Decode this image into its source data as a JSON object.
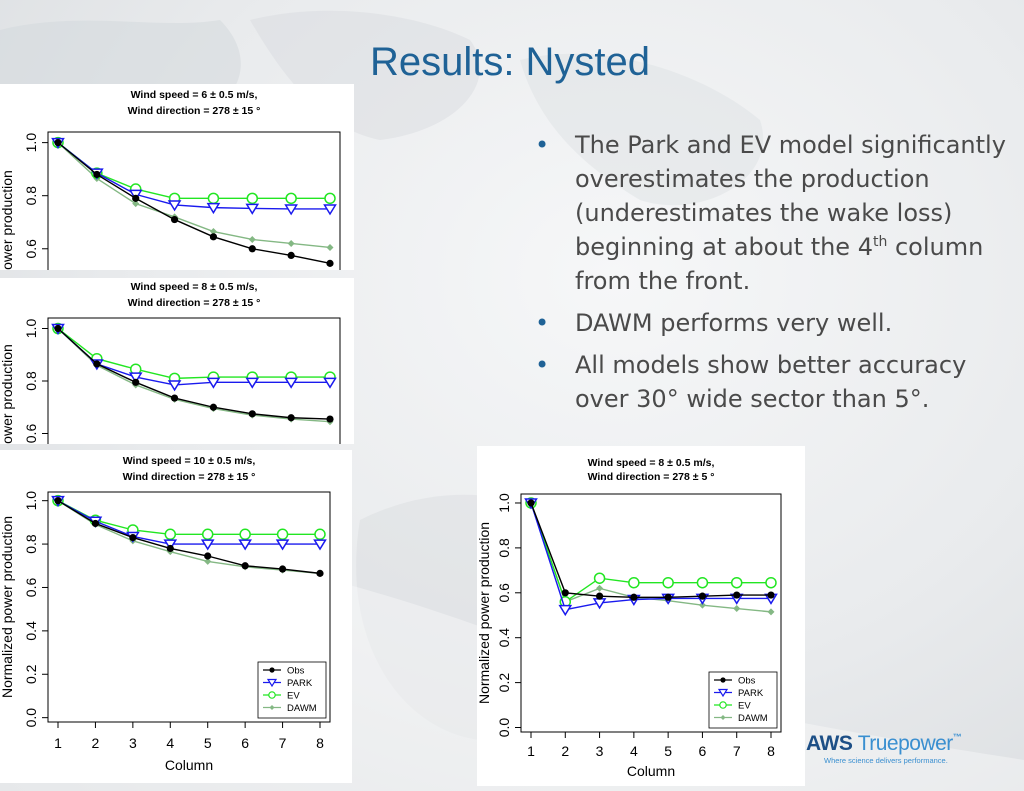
{
  "slide": {
    "title": "Results: Nysted",
    "bullets": [
      {
        "parts": [
          "The Park and EV model significantly overestimates the production (underestimates the wake loss) beginning at about the 4",
          "th",
          " column from the front."
        ]
      },
      {
        "parts": [
          "DAWM performs very well."
        ]
      },
      {
        "parts": [
          "All models show better accuracy over 30° wide sector than 5°."
        ]
      }
    ],
    "bullet_glyph": "•"
  },
  "logo": {
    "brand_bold": "AWS",
    "brand_light": "Truepower",
    "trademark": "™",
    "tagline": "Where science delivers performance."
  },
  "colors": {
    "Obs": "#000000",
    "PARK": "#1a1aee",
    "EV": "#22e622",
    "DAWM": "#84b884",
    "title": "#1f6296"
  },
  "chart_data": [
    {
      "type": "line",
      "title": [
        "Wind speed =  6 ± 0.5  m/s,",
        "Wind direction =  278 ± 15 °"
      ],
      "xlabel": "",
      "ylabel": "ower production",
      "x": [
        1,
        2,
        3,
        4,
        5,
        6,
        7,
        8
      ],
      "ylim": [
        0.52,
        1.04
      ],
      "yticks": [
        "0.6",
        "0.8",
        "1.0"
      ],
      "xticks": [],
      "legend": false,
      "series": [
        {
          "name": "Obs",
          "values": [
            1.0,
            0.88,
            0.79,
            0.71,
            0.645,
            0.6,
            0.575,
            0.545
          ]
        },
        {
          "name": "PARK",
          "values": [
            1.0,
            0.885,
            0.805,
            0.765,
            0.755,
            0.752,
            0.75,
            0.75
          ]
        },
        {
          "name": "EV",
          "values": [
            1.0,
            0.885,
            0.825,
            0.79,
            0.79,
            0.79,
            0.79,
            0.79
          ]
        },
        {
          "name": "DAWM",
          "values": [
            1.0,
            0.865,
            0.77,
            0.72,
            0.665,
            0.635,
            0.62,
            0.605
          ]
        }
      ]
    },
    {
      "type": "line",
      "title": [
        "Wind speed =  8 ± 0.5  m/s,",
        "Wind direction =  278 ± 15 °"
      ],
      "xlabel": "",
      "ylabel": "ower production",
      "x": [
        1,
        2,
        3,
        4,
        5,
        6,
        7,
        8
      ],
      "ylim": [
        0.56,
        1.04
      ],
      "yticks": [
        "0.6",
        "0.8",
        "1.0"
      ],
      "xticks": [],
      "legend": false,
      "series": [
        {
          "name": "Obs",
          "values": [
            1.0,
            0.865,
            0.795,
            0.735,
            0.7,
            0.675,
            0.66,
            0.655
          ]
        },
        {
          "name": "PARK",
          "values": [
            1.0,
            0.865,
            0.815,
            0.785,
            0.795,
            0.795,
            0.795,
            0.795
          ]
        },
        {
          "name": "EV",
          "values": [
            1.0,
            0.885,
            0.845,
            0.81,
            0.815,
            0.815,
            0.815,
            0.815
          ]
        },
        {
          "name": "DAWM",
          "values": [
            1.0,
            0.86,
            0.785,
            0.73,
            0.695,
            0.67,
            0.655,
            0.645
          ]
        }
      ]
    },
    {
      "type": "line",
      "title": [
        "Wind speed =  10 ± 0.5  m/s,",
        "Wind direction =  278 ± 15 °"
      ],
      "xlabel": "Column",
      "ylabel": "Normalized power production",
      "x": [
        1,
        2,
        3,
        4,
        5,
        6,
        7,
        8
      ],
      "ylim": [
        -0.02,
        1.04
      ],
      "yticks": [
        "0.0",
        "0.2",
        "0.4",
        "0.6",
        "0.8",
        "1.0"
      ],
      "xticks": [
        "1",
        "2",
        "3",
        "4",
        "5",
        "6",
        "7",
        "8"
      ],
      "legend": true,
      "series": [
        {
          "name": "Obs",
          "values": [
            1.0,
            0.895,
            0.83,
            0.78,
            0.745,
            0.7,
            0.685,
            0.665
          ]
        },
        {
          "name": "PARK",
          "values": [
            1.0,
            0.905,
            0.835,
            0.8,
            0.8,
            0.8,
            0.8,
            0.8
          ]
        },
        {
          "name": "EV",
          "values": [
            1.0,
            0.91,
            0.865,
            0.845,
            0.845,
            0.845,
            0.845,
            0.845
          ]
        },
        {
          "name": "DAWM",
          "values": [
            1.0,
            0.89,
            0.815,
            0.765,
            0.72,
            0.695,
            0.68,
            0.665
          ]
        }
      ]
    },
    {
      "type": "line",
      "title": [
        "Wind speed =  8 ± 0.5  m/s,",
        "Wind direction =  278 ± 5 °"
      ],
      "xlabel": "Column",
      "ylabel": "Normalized power production",
      "x": [
        1,
        2,
        3,
        4,
        5,
        6,
        7,
        8
      ],
      "ylim": [
        -0.02,
        1.04
      ],
      "yticks": [
        "0.0",
        "0.2",
        "0.4",
        "0.6",
        "0.8",
        "1.0"
      ],
      "xticks": [
        "1",
        "2",
        "3",
        "4",
        "5",
        "6",
        "7",
        "8"
      ],
      "legend": true,
      "series": [
        {
          "name": "Obs",
          "values": [
            1.0,
            0.6,
            0.585,
            0.58,
            0.58,
            0.585,
            0.59,
            0.59
          ]
        },
        {
          "name": "PARK",
          "values": [
            1.0,
            0.525,
            0.555,
            0.57,
            0.575,
            0.575,
            0.575,
            0.575
          ]
        },
        {
          "name": "EV",
          "values": [
            1.0,
            0.56,
            0.665,
            0.645,
            0.645,
            0.645,
            0.645,
            0.645
          ]
        },
        {
          "name": "DAWM",
          "values": [
            1.0,
            0.56,
            0.62,
            0.58,
            0.565,
            0.545,
            0.53,
            0.515
          ]
        }
      ]
    }
  ]
}
